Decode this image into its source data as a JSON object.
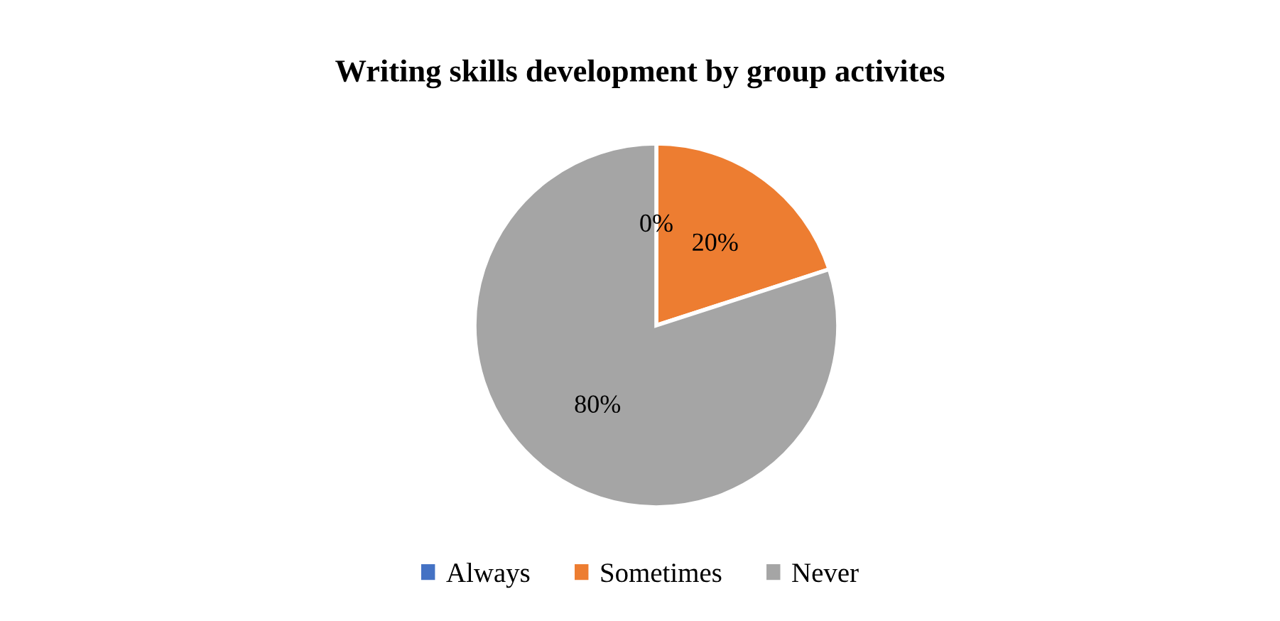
{
  "chart_data": {
    "type": "pie",
    "title": "Writing skills development by group activites",
    "categories": [
      "Always",
      "Sometimes",
      "Never"
    ],
    "values": [
      0,
      20,
      80
    ],
    "colors": [
      "#4472c4",
      "#ed7d31",
      "#a5a5a5"
    ],
    "data_labels": true,
    "value_labels": [
      "0%",
      "20%",
      "80%"
    ],
    "legend": "bottom"
  }
}
